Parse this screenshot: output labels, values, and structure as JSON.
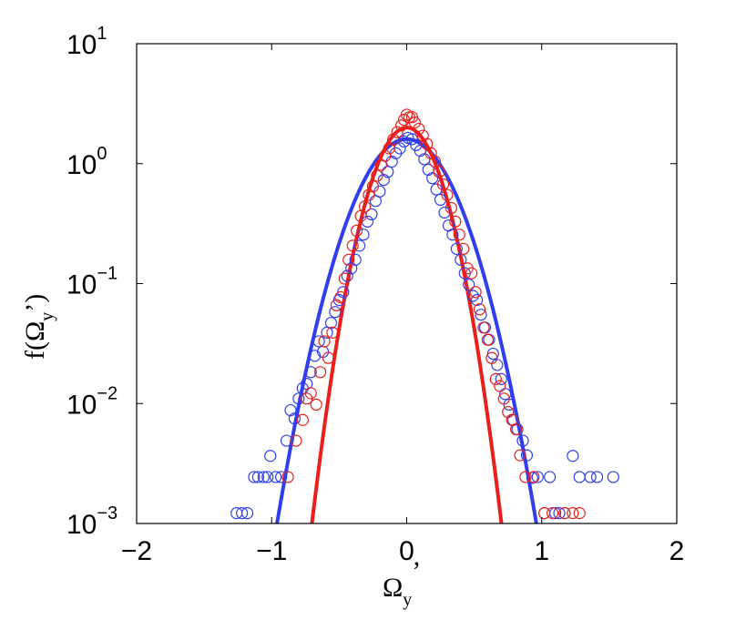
{
  "chart_data": {
    "type": "scatter",
    "title": "",
    "xlabel": {
      "main": "Ω",
      "sub": "y",
      "suffix": "’"
    },
    "ylabel": {
      "prefix": "f(Ω",
      "sub": "y",
      "suffix": "’)"
    },
    "xlim": [
      -2,
      2
    ],
    "ylim": [
      0.001,
      10
    ],
    "yscale": "log",
    "xticks": [
      -2,
      -1,
      0,
      1,
      2
    ],
    "xtick_labels": [
      "−2",
      "−1",
      "0",
      "1",
      "2"
    ],
    "yticks": [
      0.001,
      0.01,
      0.1,
      1,
      10
    ],
    "ytick_labels": [
      {
        "base": "10",
        "exp": "−3"
      },
      {
        "base": "10",
        "exp": "−2"
      },
      {
        "base": "10",
        "exp": "−1"
      },
      {
        "base": "10",
        "exp": "0"
      },
      {
        "base": "10",
        "exp": "1"
      }
    ],
    "grid": false,
    "colors": {
      "blue": "#2f3ff0",
      "red": "#e8201c"
    },
    "series": [
      {
        "color": "blue",
        "style": "markers",
        "points": [
          [
            -1.26,
            0.00122
          ],
          [
            -1.22,
            0.00122
          ],
          [
            -1.18,
            0.00122
          ],
          [
            -1.13,
            0.00244
          ],
          [
            -1.1,
            0.00244
          ],
          [
            -1.06,
            0.00244
          ],
          [
            -1.03,
            0.00244
          ],
          [
            -1.01,
            0.00366
          ],
          [
            -0.97,
            0.00244
          ],
          [
            -0.93,
            0.00244
          ],
          [
            -0.89,
            0.0049
          ],
          [
            -0.86,
            0.0088
          ],
          [
            -0.83,
            0.0075
          ],
          [
            -0.8,
            0.011
          ],
          [
            -0.77,
            0.0134
          ],
          [
            -0.74,
            0.0146
          ],
          [
            -0.71,
            0.0183
          ],
          [
            -0.68,
            0.025
          ],
          [
            -0.65,
            0.033
          ],
          [
            -0.62,
            0.027
          ],
          [
            -0.59,
            0.039
          ],
          [
            -0.56,
            0.047
          ],
          [
            -0.53,
            0.058
          ],
          [
            -0.5,
            0.073
          ],
          [
            -0.47,
            0.085
          ],
          [
            -0.44,
            0.116
          ],
          [
            -0.41,
            0.134
          ],
          [
            -0.38,
            0.158
          ],
          [
            -0.35,
            0.207
          ],
          [
            -0.32,
            0.256
          ],
          [
            -0.29,
            0.329
          ],
          [
            -0.26,
            0.378
          ],
          [
            -0.23,
            0.488
          ],
          [
            -0.2,
            0.586
          ],
          [
            -0.17,
            0.732
          ],
          [
            -0.14,
            0.854
          ],
          [
            -0.11,
            1.04
          ],
          [
            -0.08,
            1.22
          ],
          [
            -0.05,
            1.34
          ],
          [
            -0.02,
            1.53
          ],
          [
            0.01,
            1.64
          ],
          [
            0.04,
            1.6
          ],
          [
            0.07,
            1.43
          ],
          [
            0.1,
            1.28
          ],
          [
            0.13,
            1.09
          ],
          [
            0.16,
            0.89
          ],
          [
            0.19,
            0.757
          ],
          [
            0.22,
            0.61
          ],
          [
            0.25,
            0.5
          ],
          [
            0.28,
            0.391
          ],
          [
            0.31,
            0.305
          ],
          [
            0.34,
            0.256
          ],
          [
            0.37,
            0.195
          ],
          [
            0.4,
            0.158
          ],
          [
            0.43,
            0.122
          ],
          [
            0.46,
            0.098
          ],
          [
            0.49,
            0.079
          ],
          [
            0.52,
            0.073
          ],
          [
            0.55,
            0.055
          ],
          [
            0.58,
            0.043
          ],
          [
            0.61,
            0.034
          ],
          [
            0.64,
            0.026
          ],
          [
            0.67,
            0.021
          ],
          [
            0.7,
            0.016
          ],
          [
            0.73,
            0.012
          ],
          [
            0.76,
            0.0098
          ],
          [
            0.79,
            0.0073
          ],
          [
            0.82,
            0.0061
          ],
          [
            0.86,
            0.0049
          ],
          [
            0.89,
            0.0037
          ],
          [
            0.93,
            0.0024
          ],
          [
            0.97,
            0.00244
          ],
          [
            1.02,
            0.00122
          ],
          [
            1.06,
            0.00244
          ],
          [
            1.1,
            0.00122
          ],
          [
            1.13,
            0.00122
          ],
          [
            1.17,
            0.00122
          ],
          [
            1.23,
            0.00366
          ],
          [
            1.28,
            0.00244
          ],
          [
            1.36,
            0.00244
          ],
          [
            1.41,
            0.00244
          ],
          [
            1.53,
            0.00244
          ]
        ]
      },
      {
        "color": "red",
        "style": "markers",
        "points": [
          [
            -0.88,
            0.00244
          ],
          [
            -0.82,
            0.0049
          ],
          [
            -0.77,
            0.0073
          ],
          [
            -0.74,
            0.011
          ],
          [
            -0.71,
            0.0122
          ],
          [
            -0.67,
            0.0098
          ],
          [
            -0.64,
            0.0183
          ],
          [
            -0.61,
            0.033
          ],
          [
            -0.58,
            0.024
          ],
          [
            -0.55,
            0.039
          ],
          [
            -0.52,
            0.066
          ],
          [
            -0.49,
            0.077
          ],
          [
            -0.46,
            0.11
          ],
          [
            -0.43,
            0.158
          ],
          [
            -0.4,
            0.207
          ],
          [
            -0.37,
            0.276
          ],
          [
            -0.34,
            0.366
          ],
          [
            -0.31,
            0.439
          ],
          [
            -0.28,
            0.549
          ],
          [
            -0.25,
            0.647
          ],
          [
            -0.22,
            0.794
          ],
          [
            -0.19,
            0.976
          ],
          [
            -0.16,
            1.16
          ],
          [
            -0.13,
            1.34
          ],
          [
            -0.1,
            1.59
          ],
          [
            -0.07,
            1.83
          ],
          [
            -0.04,
            2.08
          ],
          [
            -0.02,
            2.32
          ],
          [
            0.0,
            2.56
          ],
          [
            0.02,
            2.44
          ],
          [
            0.04,
            2.44
          ],
          [
            0.06,
            2.2
          ],
          [
            0.09,
            1.95
          ],
          [
            0.12,
            1.71
          ],
          [
            0.15,
            1.46
          ],
          [
            0.18,
            1.22
          ],
          [
            0.21,
            1.04
          ],
          [
            0.24,
            0.854
          ],
          [
            0.27,
            0.671
          ],
          [
            0.3,
            0.549
          ],
          [
            0.33,
            0.427
          ],
          [
            0.36,
            0.329
          ],
          [
            0.39,
            0.256
          ],
          [
            0.42,
            0.195
          ],
          [
            0.45,
            0.134
          ],
          [
            0.48,
            0.122
          ],
          [
            0.51,
            0.085
          ],
          [
            0.54,
            0.061
          ],
          [
            0.57,
            0.043
          ],
          [
            0.6,
            0.034
          ],
          [
            0.63,
            0.024
          ],
          [
            0.66,
            0.016
          ],
          [
            0.69,
            0.014
          ],
          [
            0.72,
            0.011
          ],
          [
            0.75,
            0.0085
          ],
          [
            0.78,
            0.0073
          ],
          [
            0.81,
            0.0061
          ],
          [
            0.84,
            0.0037
          ],
          [
            0.88,
            0.00244
          ],
          [
            0.94,
            0.00244
          ],
          [
            1.02,
            0.00122
          ],
          [
            1.08,
            0.00122
          ],
          [
            1.17,
            0.00122
          ],
          [
            1.23,
            0.00122
          ],
          [
            1.28,
            0.00122
          ]
        ]
      },
      {
        "color": "blue",
        "style": "line",
        "fit": "gaussian",
        "peak": 1.6,
        "sigma": 0.25
      },
      {
        "color": "red",
        "style": "line",
        "fit": "gaussian",
        "peak": 2.0,
        "sigma": 0.18
      }
    ]
  }
}
